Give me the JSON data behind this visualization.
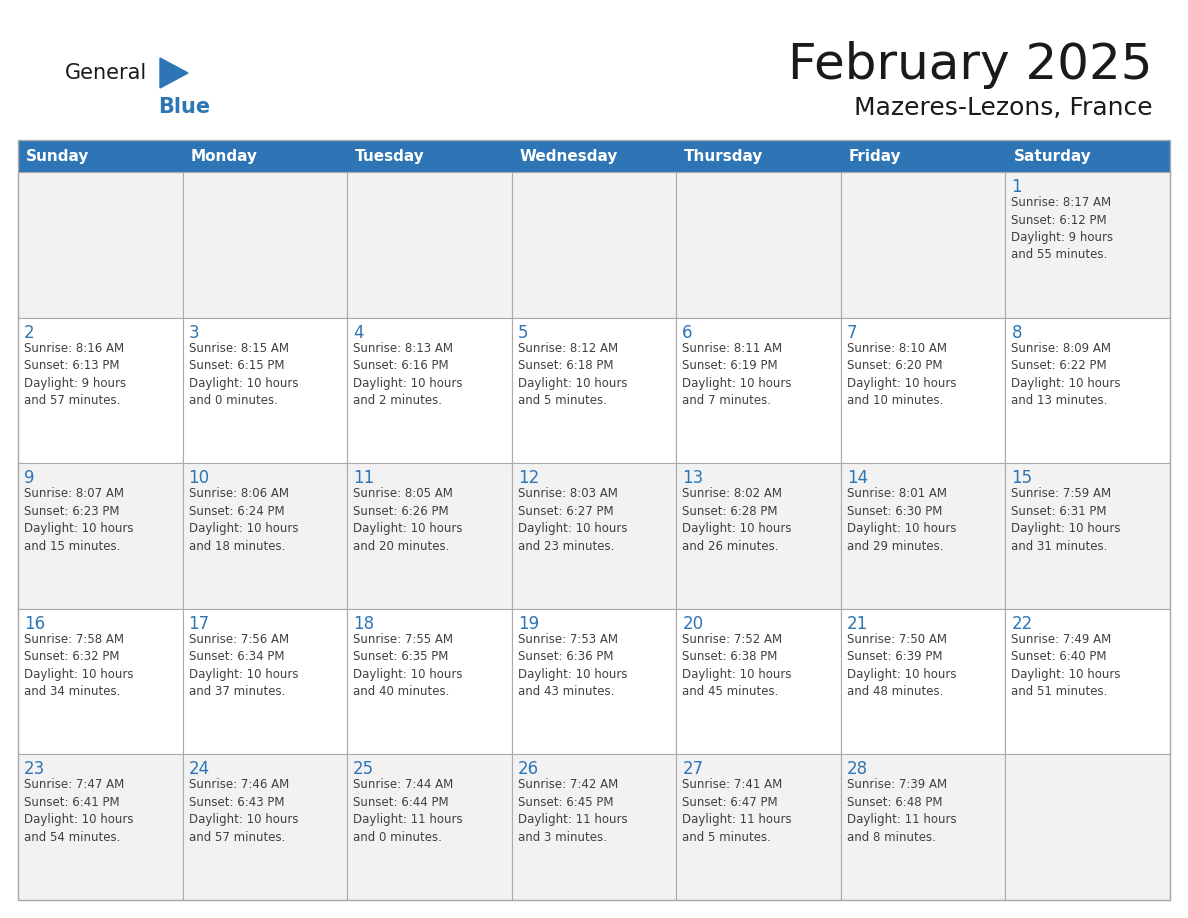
{
  "title": "February 2025",
  "subtitle": "Mazeres-Lezons, France",
  "days_of_week": [
    "Sunday",
    "Monday",
    "Tuesday",
    "Wednesday",
    "Thursday",
    "Friday",
    "Saturday"
  ],
  "header_bg_color": "#2E75B6",
  "header_text_color": "#FFFFFF",
  "cell_bg_color": "#FFFFFF",
  "cell_bg_odd_row": "#F2F2F2",
  "cell_border_color": "#AAAAAA",
  "day_number_color": "#2E75B6",
  "info_text_color": "#404040",
  "bg_color": "#FFFFFF",
  "title_color": "#1a1a1a",
  "subtitle_color": "#1a1a1a",
  "logo_general_color": "#1a1a1a",
  "logo_blue_color": "#2E75B6",
  "calendar_data": [
    [
      {
        "day": null,
        "info": ""
      },
      {
        "day": null,
        "info": ""
      },
      {
        "day": null,
        "info": ""
      },
      {
        "day": null,
        "info": ""
      },
      {
        "day": null,
        "info": ""
      },
      {
        "day": null,
        "info": ""
      },
      {
        "day": 1,
        "info": "Sunrise: 8:17 AM\nSunset: 6:12 PM\nDaylight: 9 hours\nand 55 minutes."
      }
    ],
    [
      {
        "day": 2,
        "info": "Sunrise: 8:16 AM\nSunset: 6:13 PM\nDaylight: 9 hours\nand 57 minutes."
      },
      {
        "day": 3,
        "info": "Sunrise: 8:15 AM\nSunset: 6:15 PM\nDaylight: 10 hours\nand 0 minutes."
      },
      {
        "day": 4,
        "info": "Sunrise: 8:13 AM\nSunset: 6:16 PM\nDaylight: 10 hours\nand 2 minutes."
      },
      {
        "day": 5,
        "info": "Sunrise: 8:12 AM\nSunset: 6:18 PM\nDaylight: 10 hours\nand 5 minutes."
      },
      {
        "day": 6,
        "info": "Sunrise: 8:11 AM\nSunset: 6:19 PM\nDaylight: 10 hours\nand 7 minutes."
      },
      {
        "day": 7,
        "info": "Sunrise: 8:10 AM\nSunset: 6:20 PM\nDaylight: 10 hours\nand 10 minutes."
      },
      {
        "day": 8,
        "info": "Sunrise: 8:09 AM\nSunset: 6:22 PM\nDaylight: 10 hours\nand 13 minutes."
      }
    ],
    [
      {
        "day": 9,
        "info": "Sunrise: 8:07 AM\nSunset: 6:23 PM\nDaylight: 10 hours\nand 15 minutes."
      },
      {
        "day": 10,
        "info": "Sunrise: 8:06 AM\nSunset: 6:24 PM\nDaylight: 10 hours\nand 18 minutes."
      },
      {
        "day": 11,
        "info": "Sunrise: 8:05 AM\nSunset: 6:26 PM\nDaylight: 10 hours\nand 20 minutes."
      },
      {
        "day": 12,
        "info": "Sunrise: 8:03 AM\nSunset: 6:27 PM\nDaylight: 10 hours\nand 23 minutes."
      },
      {
        "day": 13,
        "info": "Sunrise: 8:02 AM\nSunset: 6:28 PM\nDaylight: 10 hours\nand 26 minutes."
      },
      {
        "day": 14,
        "info": "Sunrise: 8:01 AM\nSunset: 6:30 PM\nDaylight: 10 hours\nand 29 minutes."
      },
      {
        "day": 15,
        "info": "Sunrise: 7:59 AM\nSunset: 6:31 PM\nDaylight: 10 hours\nand 31 minutes."
      }
    ],
    [
      {
        "day": 16,
        "info": "Sunrise: 7:58 AM\nSunset: 6:32 PM\nDaylight: 10 hours\nand 34 minutes."
      },
      {
        "day": 17,
        "info": "Sunrise: 7:56 AM\nSunset: 6:34 PM\nDaylight: 10 hours\nand 37 minutes."
      },
      {
        "day": 18,
        "info": "Sunrise: 7:55 AM\nSunset: 6:35 PM\nDaylight: 10 hours\nand 40 minutes."
      },
      {
        "day": 19,
        "info": "Sunrise: 7:53 AM\nSunset: 6:36 PM\nDaylight: 10 hours\nand 43 minutes."
      },
      {
        "day": 20,
        "info": "Sunrise: 7:52 AM\nSunset: 6:38 PM\nDaylight: 10 hours\nand 45 minutes."
      },
      {
        "day": 21,
        "info": "Sunrise: 7:50 AM\nSunset: 6:39 PM\nDaylight: 10 hours\nand 48 minutes."
      },
      {
        "day": 22,
        "info": "Sunrise: 7:49 AM\nSunset: 6:40 PM\nDaylight: 10 hours\nand 51 minutes."
      }
    ],
    [
      {
        "day": 23,
        "info": "Sunrise: 7:47 AM\nSunset: 6:41 PM\nDaylight: 10 hours\nand 54 minutes."
      },
      {
        "day": 24,
        "info": "Sunrise: 7:46 AM\nSunset: 6:43 PM\nDaylight: 10 hours\nand 57 minutes."
      },
      {
        "day": 25,
        "info": "Sunrise: 7:44 AM\nSunset: 6:44 PM\nDaylight: 11 hours\nand 0 minutes."
      },
      {
        "day": 26,
        "info": "Sunrise: 7:42 AM\nSunset: 6:45 PM\nDaylight: 11 hours\nand 3 minutes."
      },
      {
        "day": 27,
        "info": "Sunrise: 7:41 AM\nSunset: 6:47 PM\nDaylight: 11 hours\nand 5 minutes."
      },
      {
        "day": 28,
        "info": "Sunrise: 7:39 AM\nSunset: 6:48 PM\nDaylight: 11 hours\nand 8 minutes."
      },
      {
        "day": null,
        "info": ""
      }
    ]
  ]
}
